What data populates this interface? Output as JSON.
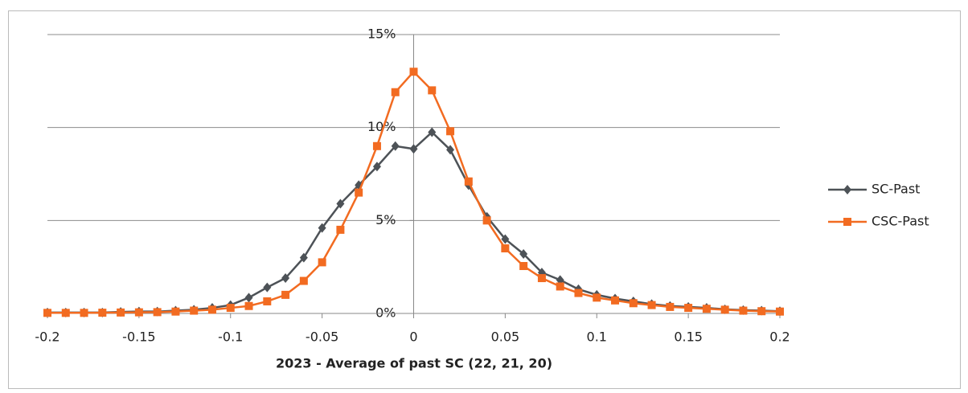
{
  "chart_data": {
    "type": "line",
    "x_label": "2023 - Average of past SC (22, 21, 20)",
    "x": [
      -0.2,
      -0.19,
      -0.18,
      -0.17,
      -0.16,
      -0.15,
      -0.14,
      -0.13,
      -0.12,
      -0.11,
      -0.1,
      -0.09,
      -0.08,
      -0.07,
      -0.06,
      -0.05,
      -0.04,
      -0.03,
      -0.02,
      -0.01,
      0,
      0.01,
      0.02,
      0.03,
      0.04,
      0.05,
      0.06,
      0.07,
      0.08,
      0.09,
      0.1,
      0.11,
      0.12,
      0.13,
      0.14,
      0.15,
      0.16,
      0.17,
      0.18,
      0.19,
      0.2
    ],
    "series": [
      {
        "name": "SC-Past",
        "color": "#4d5257",
        "marker": "diamond",
        "values": [
          0.05,
          0.05,
          0.05,
          0.05,
          0.08,
          0.1,
          0.1,
          0.15,
          0.2,
          0.3,
          0.45,
          0.85,
          1.4,
          1.9,
          3.0,
          4.6,
          5.9,
          6.9,
          7.9,
          9.0,
          8.85,
          9.75,
          8.8,
          6.9,
          5.2,
          4.0,
          3.2,
          2.2,
          1.8,
          1.3,
          1.0,
          0.8,
          0.65,
          0.5,
          0.4,
          0.35,
          0.3,
          0.22,
          0.18,
          0.15,
          0.12
        ]
      },
      {
        "name": "CSC-Past",
        "color": "#f26b21",
        "marker": "square",
        "values": [
          0.03,
          0.03,
          0.03,
          0.04,
          0.05,
          0.06,
          0.07,
          0.1,
          0.15,
          0.2,
          0.3,
          0.4,
          0.65,
          1.0,
          1.75,
          2.75,
          4.5,
          6.5,
          9.0,
          11.9,
          13.0,
          12.0,
          9.8,
          7.1,
          5.0,
          3.5,
          2.55,
          1.9,
          1.45,
          1.1,
          0.85,
          0.7,
          0.55,
          0.45,
          0.35,
          0.3,
          0.25,
          0.2,
          0.15,
          0.12,
          0.1
        ]
      }
    ],
    "xlim": [
      -0.2,
      0.2
    ],
    "xticks": [
      -0.2,
      -0.15,
      -0.1,
      -0.05,
      0,
      0.05,
      0.1,
      0.15,
      0.2
    ],
    "ylim": [
      0,
      15
    ],
    "yticks": [
      {
        "value": 0,
        "label": "0%"
      },
      {
        "value": 5,
        "label": "5%"
      },
      {
        "value": 10,
        "label": "10%"
      },
      {
        "value": 15,
        "label": "15%"
      }
    ],
    "grid": true,
    "legend": "right"
  }
}
